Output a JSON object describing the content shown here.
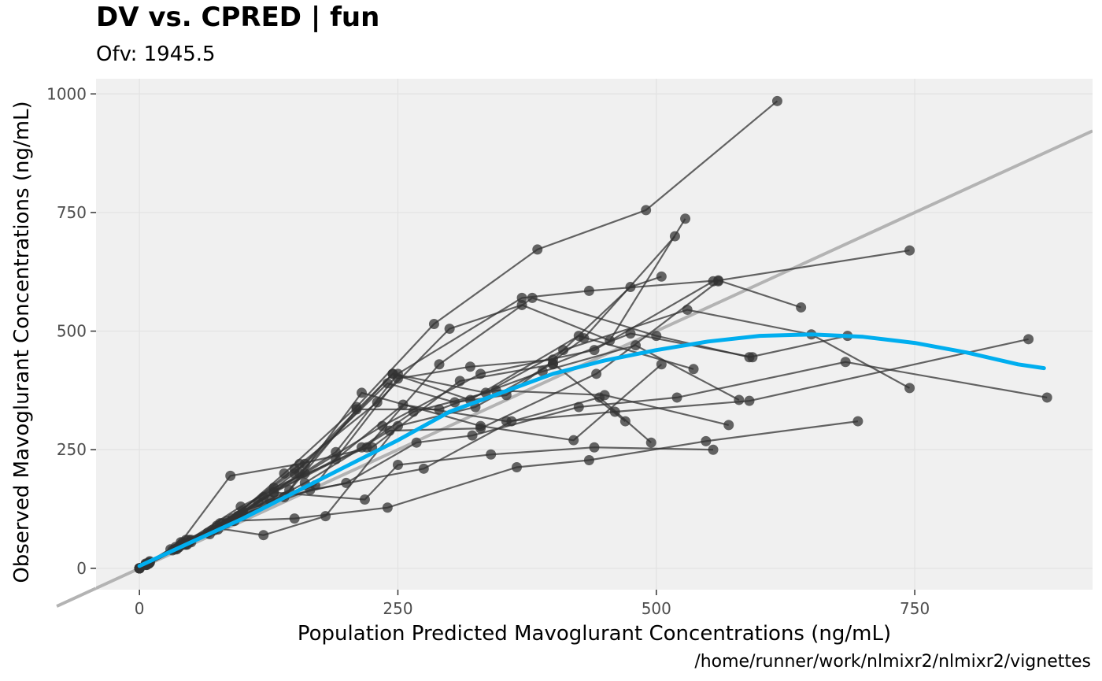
{
  "header": {
    "title": "DV vs. CPRED | fun",
    "subtitle": "Ofv: 1945.5",
    "caption": "/home/runner/work/nlmixr2/nlmixr2/vignettes"
  },
  "colors": {
    "panel_bg": "#f0f0f0",
    "grid": "#e2e2e2",
    "points_lines": "#333333",
    "identity_line": "#b3b3b3",
    "smooth": "#00aeef"
  },
  "chart_data": {
    "type": "scatter",
    "xlabel": "Population Predicted Mavoglurant Concentrations (ng/mL)",
    "ylabel": "Observed Mavoglurant Concentrations (ng/mL)",
    "xlim": [
      -42,
      922
    ],
    "ylim": [
      -45,
      1032
    ],
    "xticks": [
      0,
      250,
      500,
      750
    ],
    "yticks": [
      0,
      250,
      500,
      750,
      1000
    ],
    "grid": true,
    "identity_line": true,
    "individuals": [
      [
        [
          0,
          0
        ],
        [
          10,
          15
        ],
        [
          45,
          60
        ],
        [
          90,
          105
        ],
        [
          140,
          200
        ],
        [
          210,
          340
        ],
        [
          285,
          515
        ],
        [
          385,
          672
        ],
        [
          490,
          755
        ],
        [
          617,
          985
        ]
      ],
      [
        [
          0,
          0
        ],
        [
          8,
          10
        ],
        [
          40,
          50
        ],
        [
          85,
          100
        ],
        [
          150,
          210
        ],
        [
          230,
          350
        ],
        [
          300,
          505
        ],
        [
          370,
          555
        ],
        [
          455,
          480
        ],
        [
          528,
          737
        ]
      ],
      [
        [
          0,
          0
        ],
        [
          9,
          12
        ],
        [
          42,
          55
        ],
        [
          80,
          95
        ],
        [
          160,
          220
        ],
        [
          240,
          390
        ],
        [
          305,
          350
        ],
        [
          355,
          365
        ],
        [
          430,
          485
        ],
        [
          518,
          700
        ]
      ],
      [
        [
          0,
          0
        ],
        [
          7,
          8
        ],
        [
          30,
          40
        ],
        [
          70,
          80
        ],
        [
          115,
          140
        ],
        [
          190,
          245
        ],
        [
          250,
          410
        ],
        [
          370,
          570
        ],
        [
          435,
          585
        ],
        [
          560,
          607
        ],
        [
          640,
          550
        ]
      ],
      [
        [
          0,
          0
        ],
        [
          6,
          10
        ],
        [
          35,
          45
        ],
        [
          75,
          90
        ],
        [
          130,
          170
        ],
        [
          220,
          255
        ],
        [
          290,
          430
        ],
        [
          380,
          570
        ],
        [
          500,
          490
        ],
        [
          590,
          445
        ],
        [
          685,
          490
        ]
      ],
      [
        [
          0,
          0
        ],
        [
          10,
          12
        ],
        [
          50,
          60
        ],
        [
          100,
          120
        ],
        [
          170,
          175
        ],
        [
          250,
          400
        ],
        [
          320,
          425
        ],
        [
          400,
          440
        ],
        [
          475,
          593
        ],
        [
          505,
          615
        ]
      ],
      [
        [
          0,
          0
        ],
        [
          8,
          10
        ],
        [
          45,
          50
        ],
        [
          95,
          110
        ],
        [
          150,
          200
        ],
        [
          245,
          410
        ],
        [
          335,
          370
        ],
        [
          410,
          460
        ],
        [
          530,
          545
        ],
        [
          650,
          493
        ],
        [
          745,
          380
        ]
      ],
      [
        [
          0,
          0
        ],
        [
          7,
          9
        ],
        [
          38,
          45
        ],
        [
          78,
          95
        ],
        [
          145,
          165
        ],
        [
          215,
          370
        ],
        [
          330,
          300
        ],
        [
          420,
          270
        ],
        [
          505,
          430
        ]
      ],
      [
        [
          0,
          0
        ],
        [
          9,
          11
        ],
        [
          48,
          60
        ],
        [
          98,
          130
        ],
        [
          160,
          200
        ],
        [
          235,
          300
        ],
        [
          330,
          410
        ],
        [
          440,
          460
        ],
        [
          555,
          605
        ],
        [
          745,
          670
        ]
      ],
      [
        [
          0,
          0
        ],
        [
          6,
          8
        ],
        [
          40,
          55
        ],
        [
          88,
          195
        ],
        [
          155,
          220
        ],
        [
          225,
          255
        ],
        [
          310,
          395
        ],
        [
          400,
          430
        ],
        [
          475,
          495
        ],
        [
          593,
          445
        ]
      ],
      [
        [
          0,
          0
        ],
        [
          8,
          9
        ],
        [
          36,
          42
        ],
        [
          72,
          80
        ],
        [
          130,
          160
        ],
        [
          215,
          255
        ],
        [
          265,
          330
        ],
        [
          345,
          375
        ],
        [
          450,
          365
        ],
        [
          570,
          302
        ]
      ],
      [
        [
          0,
          0
        ],
        [
          10,
          12
        ],
        [
          50,
          55
        ],
        [
          100,
          115
        ],
        [
          155,
          200
        ],
        [
          245,
          410
        ],
        [
          320,
          355
        ],
        [
          425,
          490
        ],
        [
          536,
          420
        ]
      ],
      [
        [
          0,
          0
        ],
        [
          7,
          8
        ],
        [
          32,
          38
        ],
        [
          66,
          75
        ],
        [
          120,
          150
        ],
        [
          190,
          230
        ],
        [
          255,
          345
        ],
        [
          355,
          310
        ],
        [
          460,
          330
        ],
        [
          590,
          353
        ],
        [
          860,
          483
        ]
      ],
      [
        [
          0,
          0
        ],
        [
          9,
          10
        ],
        [
          46,
          50
        ],
        [
          92,
          100
        ],
        [
          160,
          180
        ],
        [
          242,
          290
        ],
        [
          330,
          295
        ],
        [
          442,
          410
        ],
        [
          560,
          605
        ]
      ],
      [
        [
          0,
          0
        ],
        [
          8,
          9
        ],
        [
          40,
          48
        ],
        [
          84,
          95
        ],
        [
          140,
          150
        ],
        [
          210,
          335
        ],
        [
          290,
          335
        ],
        [
          390,
          415
        ],
        [
          480,
          470
        ],
        [
          580,
          355
        ]
      ],
      [
        [
          0,
          0
        ],
        [
          6,
          7
        ],
        [
          34,
          40
        ],
        [
          68,
          72
        ],
        [
          126,
          145
        ],
        [
          200,
          180
        ],
        [
          268,
          265
        ],
        [
          322,
          280
        ],
        [
          425,
          340
        ],
        [
          520,
          360
        ],
        [
          683,
          435
        ],
        [
          878,
          360
        ]
      ],
      [
        [
          0,
          0
        ],
        [
          7,
          8
        ],
        [
          38,
          44
        ],
        [
          76,
          82
        ],
        [
          130,
          160
        ],
        [
          218,
          145
        ],
        [
          250,
          218
        ],
        [
          340,
          240
        ],
        [
          440,
          255
        ],
        [
          555,
          250
        ]
      ],
      [
        [
          0,
          0
        ],
        [
          8,
          9
        ],
        [
          44,
          50
        ],
        [
          90,
          100
        ],
        [
          150,
          105
        ],
        [
          240,
          128
        ],
        [
          365,
          213
        ],
        [
          435,
          228
        ],
        [
          548,
          268
        ],
        [
          695,
          310
        ]
      ],
      [
        [
          0,
          0
        ],
        [
          9,
          10
        ],
        [
          48,
          55
        ],
        [
          95,
          110
        ],
        [
          165,
          165
        ],
        [
          275,
          210
        ],
        [
          360,
          310
        ],
        [
          445,
          360
        ],
        [
          495,
          265
        ]
      ],
      [
        [
          0,
          0
        ],
        [
          7,
          7
        ],
        [
          36,
          40
        ],
        [
          74,
          85
        ],
        [
          120,
          70
        ],
        [
          180,
          110
        ],
        [
          250,
          300
        ],
        [
          325,
          340
        ],
        [
          400,
          432
        ],
        [
          470,
          310
        ]
      ]
    ],
    "smooth": {
      "x": [
        0,
        50,
        100,
        150,
        200,
        250,
        300,
        350,
        400,
        450,
        500,
        550,
        600,
        650,
        700,
        750,
        800,
        850,
        875
      ],
      "y": [
        5,
        55,
        105,
        160,
        215,
        270,
        330,
        370,
        410,
        438,
        460,
        478,
        490,
        493,
        488,
        475,
        455,
        430,
        422
      ]
    }
  }
}
